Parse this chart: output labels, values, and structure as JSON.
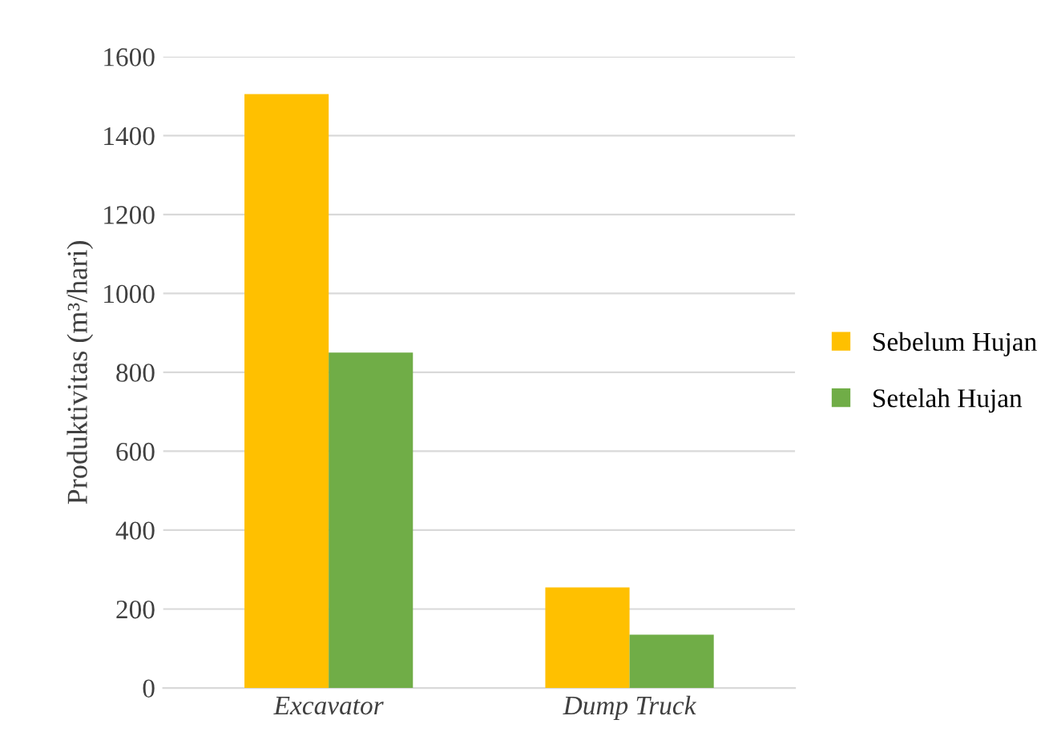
{
  "chart_data": {
    "type": "bar",
    "ylabel": "Produktivitas (m³/hari)",
    "categories": [
      "Excavator",
      "Dump Truck"
    ],
    "series": [
      {
        "name": "Sebelum Hujan",
        "color": "#ffc000",
        "values": [
          1505,
          255
        ]
      },
      {
        "name": "Setelah Hujan",
        "color": "#70ad47",
        "values": [
          850,
          135
        ]
      }
    ],
    "ylim": [
      0,
      1600
    ],
    "yticks": [
      0,
      200,
      400,
      600,
      800,
      1000,
      1200,
      1400,
      1600
    ],
    "grid": "y",
    "legend": "right"
  }
}
